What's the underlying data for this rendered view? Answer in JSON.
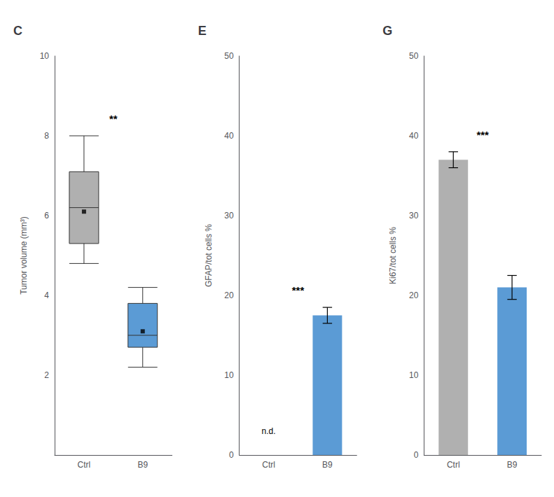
{
  "chart_data": [
    {
      "type": "box",
      "title": "C",
      "ylabel": "Tumor volume (mm³)",
      "categories": [
        "Ctrl",
        "B9"
      ],
      "boxes": [
        {
          "median": 6.2,
          "q1": 5.3,
          "q3": 7.1,
          "whisker_low": 4.8,
          "whisker_high": 8.0,
          "mean": 6.1
        },
        {
          "median": 3.0,
          "q1": 2.7,
          "q3": 3.8,
          "whisker_low": 2.2,
          "whisker_high": 4.2,
          "mean": 3.1
        }
      ],
      "colors": [
        "#b0b0b0",
        "#5b9bd5"
      ],
      "marker": "square",
      "ylim": [
        0,
        10
      ],
      "yticks": [
        2,
        4,
        6,
        8,
        10
      ],
      "grid": false,
      "annotations": [
        {
          "text": "**",
          "y": 8.3
        }
      ]
    },
    {
      "type": "bar",
      "title": "E",
      "ylabel": "GFAP/tot cells %",
      "categories": [
        "Ctrl",
        "B9"
      ],
      "values": [
        null,
        17.5
      ],
      "errors": [
        null,
        1.0
      ],
      "colors": [
        "#b0b0b0",
        "#5b9bd5"
      ],
      "ylim": [
        0,
        50
      ],
      "yticks": [
        0,
        10,
        20,
        30,
        40,
        50
      ],
      "grid": false,
      "annotations": [
        {
          "text": "n.d.",
          "category": "Ctrl",
          "y": 2.5
        },
        {
          "text": "***",
          "y": 20
        }
      ]
    },
    {
      "type": "bar",
      "title": "G",
      "ylabel": "Ki67/tot cells %",
      "categories": [
        "Ctrl",
        "B9"
      ],
      "values": [
        37.0,
        21.0
      ],
      "errors": [
        1.0,
        1.5
      ],
      "colors": [
        "#b0b0b0",
        "#5b9bd5"
      ],
      "ylim": [
        0,
        50
      ],
      "yticks": [
        0,
        10,
        20,
        30,
        40,
        50
      ],
      "grid": false,
      "annotations": [
        {
          "text": "***",
          "y": 39.5
        }
      ]
    }
  ]
}
